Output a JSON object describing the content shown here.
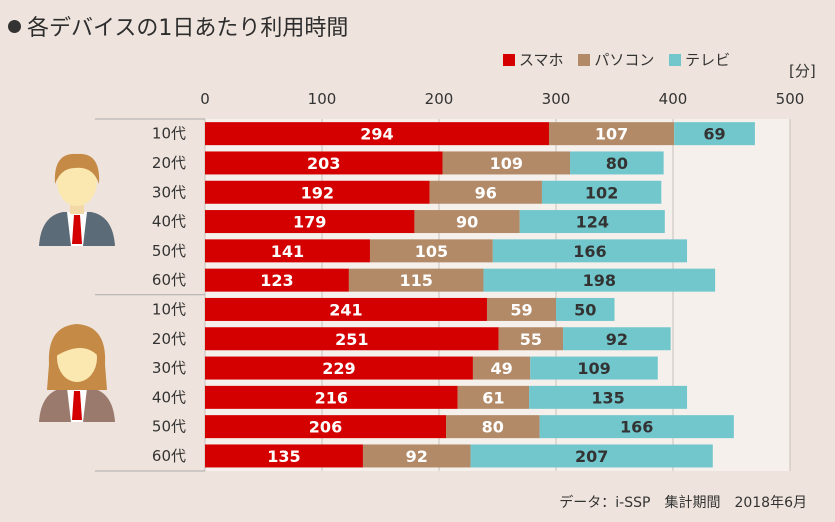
{
  "title": "各デバイスの1日あたり利用時間",
  "unit_label": "[分]",
  "source": "データ：i-SSP　集計期間　2018年6月",
  "colors": {
    "smartphone": "#d40000",
    "pc": "#b28a68",
    "tv": "#72c7cc",
    "background": "#efe4dd",
    "plot_background": "#f6f0ec"
  },
  "icons": {
    "male": "male-avatar-icon",
    "female": "female-avatar-icon"
  },
  "chart_data": {
    "type": "bar",
    "orientation": "horizontal",
    "stacked": true,
    "xlim": [
      0,
      500
    ],
    "ticks": [
      "0",
      "100",
      "200",
      "300",
      "400",
      "500"
    ],
    "tick_values": [
      0,
      100,
      200,
      300,
      400,
      500
    ],
    "legend": [
      "スマホ",
      "パソコン",
      "テレビ"
    ],
    "groups": [
      {
        "icon": "male-avatar-icon",
        "categories": [
          "10代",
          "20代",
          "30代",
          "40代",
          "50代",
          "60代"
        ]
      },
      {
        "icon": "female-avatar-icon",
        "categories": [
          "10代",
          "20代",
          "30代",
          "40代",
          "50代",
          "60代"
        ]
      }
    ],
    "categories": [
      "10代",
      "20代",
      "30代",
      "40代",
      "50代",
      "60代",
      "10代",
      "20代",
      "30代",
      "40代",
      "50代",
      "60代"
    ],
    "series": [
      {
        "name": "スマホ",
        "values": [
          294,
          203,
          192,
          179,
          141,
          123,
          241,
          251,
          229,
          216,
          206,
          135
        ]
      },
      {
        "name": "パソコン",
        "values": [
          107,
          109,
          96,
          90,
          105,
          115,
          59,
          55,
          49,
          61,
          80,
          92
        ]
      },
      {
        "name": "テレビ",
        "values": [
          69,
          80,
          102,
          124,
          166,
          198,
          50,
          92,
          109,
          135,
          166,
          207
        ]
      }
    ]
  }
}
